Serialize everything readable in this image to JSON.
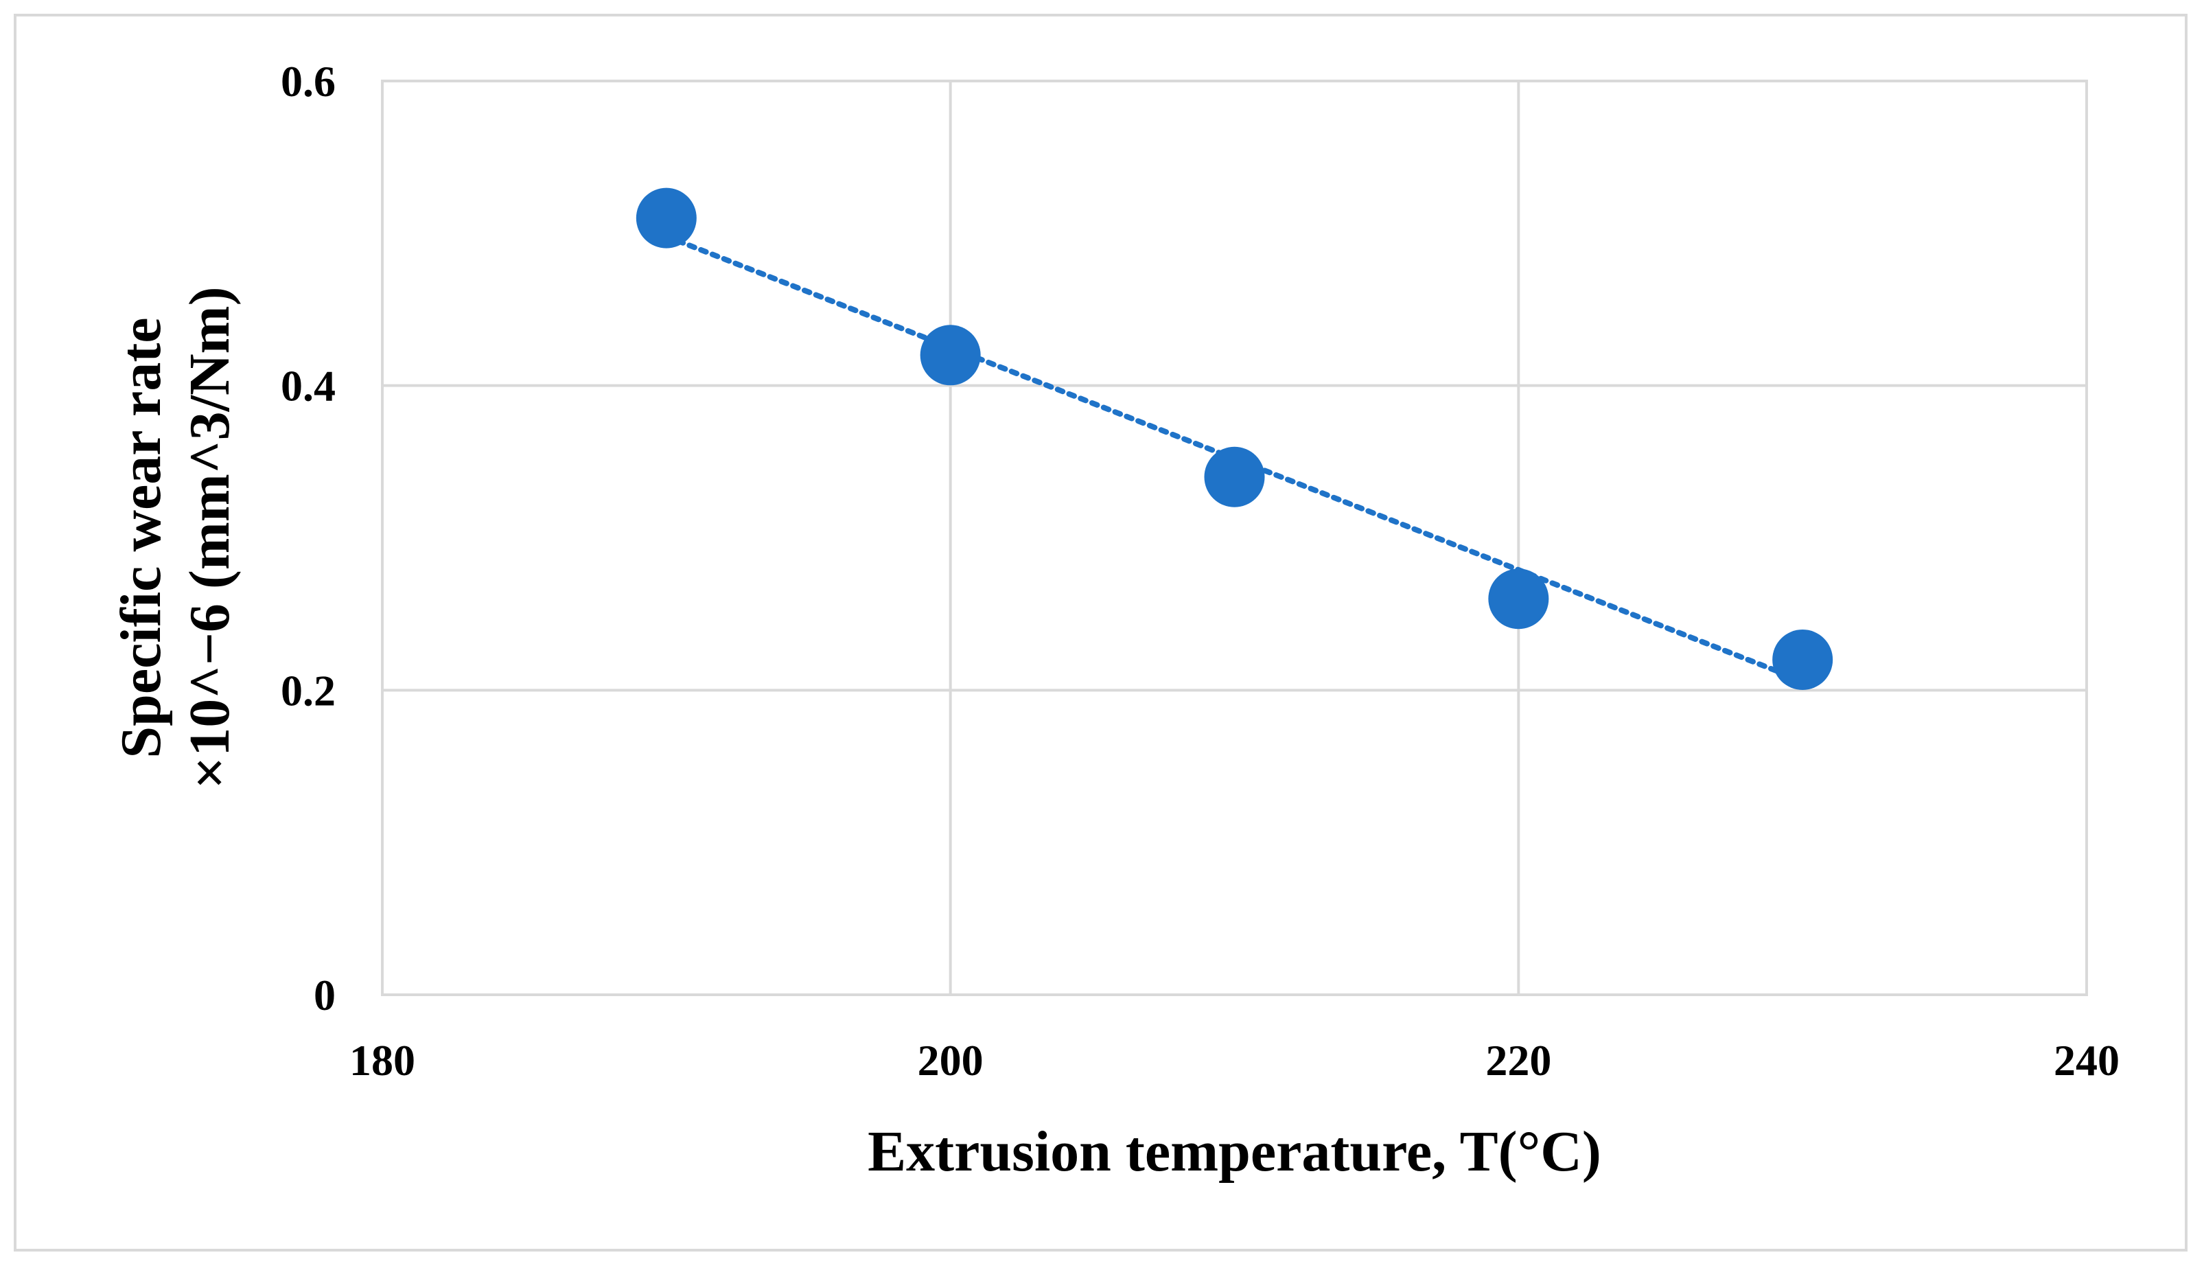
{
  "chart_data": {
    "type": "scatter",
    "title": "",
    "xlabel": "Extrusion temperature, T(°C)",
    "ylabel_line1": "Specific wear rate",
    "ylabel_line2": "×10^−6 (mm^3/Nm)",
    "xlim": [
      180,
      240
    ],
    "ylim": [
      0,
      0.6
    ],
    "x_ticks": [
      180,
      200,
      220,
      240
    ],
    "y_ticks": [
      0,
      0.2,
      0.4,
      0.6
    ],
    "x_tick_labels": [
      "180",
      "200",
      "220",
      "240"
    ],
    "y_tick_labels": [
      "0",
      "0.2",
      "0.4",
      "0.6"
    ],
    "grid": true,
    "legend": "none",
    "series": [
      {
        "name": "Specific wear rate",
        "x": [
          190,
          200,
          210,
          220,
          230
        ],
        "y": [
          0.51,
          0.42,
          0.34,
          0.26,
          0.22
        ],
        "color": "#1f73c8",
        "marker": "circle"
      }
    ],
    "trendline": {
      "type": "linear",
      "style": "dotted",
      "color": "#1f73c8",
      "x": [
        190,
        230
      ],
      "y": [
        0.498,
        0.206
      ]
    }
  }
}
